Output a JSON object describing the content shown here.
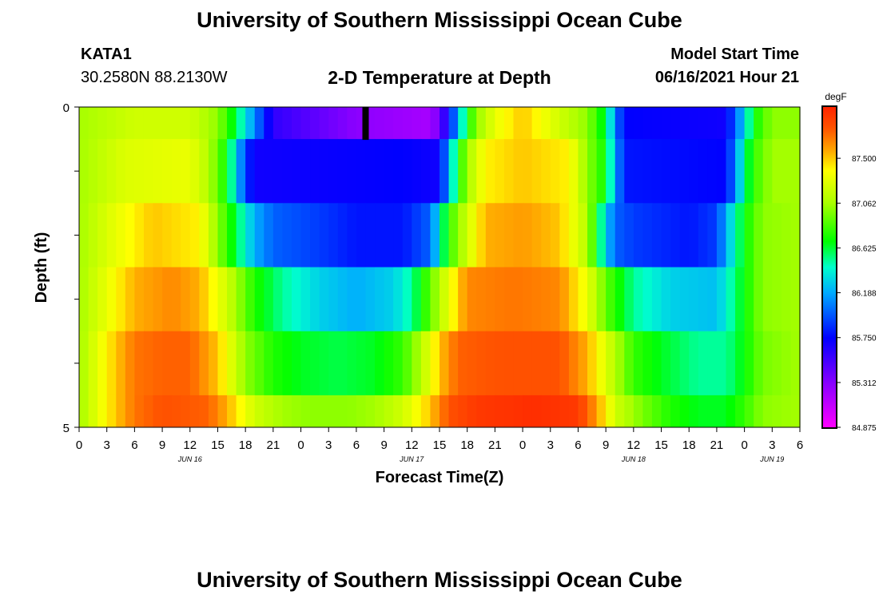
{
  "header": {
    "title": "University of Southern Mississippi Ocean Cube",
    "station": "KATA1",
    "coordinates": "30.2580N  88.2130W",
    "subtitle": "2-D Temperature at Depth",
    "model_start_label": "Model Start Time",
    "model_start_value": "06/16/2021 Hour 21"
  },
  "footer": {
    "title": "University of Southern Mississippi Ocean Cube"
  },
  "chart_data": {
    "type": "heatmap",
    "title": "2-D Temperature at Depth",
    "xlabel": "Forecast Time(Z)",
    "ylabel": "Depth (ft)",
    "ylim": [
      0,
      5
    ],
    "y_tick_labels": [
      "0",
      "5"
    ],
    "x_hours_range": [
      0,
      78
    ],
    "x_tick_labels": [
      "0",
      "3",
      "6",
      "9",
      "12",
      "15",
      "18",
      "21",
      "0",
      "3",
      "6",
      "9",
      "12",
      "15",
      "18",
      "21",
      "0",
      "3",
      "6",
      "9",
      "12",
      "15",
      "18",
      "21",
      "0",
      "3",
      "6"
    ],
    "date_labels": [
      {
        "label": "JUN 16",
        "hour": 12
      },
      {
        "label": "JUN 17",
        "hour": 36
      },
      {
        "label": "JUN 18",
        "hour": 60
      },
      {
        "label": "JUN 19",
        "hour": 75
      }
    ],
    "current_time_marker_hour": 31,
    "colorbar": {
      "unit": "degF",
      "min": 84.875,
      "max": 88.0,
      "tick_labels": [
        "87.500",
        "87.062",
        "86.625",
        "86.188",
        "85.750",
        "85.312",
        "84.875"
      ]
    },
    "depth_layers": [
      {
        "depth_range": [
          0,
          0.5
        ],
        "keyframes": [
          [
            0,
            87.05
          ],
          [
            6,
            87.2
          ],
          [
            12,
            87.2
          ],
          [
            15,
            87.0
          ],
          [
            17,
            86.6
          ],
          [
            19,
            86.1
          ],
          [
            21,
            85.6
          ],
          [
            30,
            85.3
          ],
          [
            38,
            85.2
          ],
          [
            39,
            85.4
          ],
          [
            40,
            85.75
          ],
          [
            41,
            86.2
          ],
          [
            42,
            86.7
          ],
          [
            43,
            87.0
          ],
          [
            45,
            87.3
          ],
          [
            48,
            87.5
          ],
          [
            52,
            87.2
          ],
          [
            55,
            87.0
          ],
          [
            57,
            86.6
          ],
          [
            58,
            86.1
          ],
          [
            59,
            85.75
          ],
          [
            70,
            85.7
          ],
          [
            71,
            86.0
          ],
          [
            72,
            86.3
          ],
          [
            73,
            86.7
          ],
          [
            75,
            87.0
          ],
          [
            78,
            87.0
          ]
        ]
      },
      {
        "depth_range": [
          0.5,
          1.5
        ],
        "keyframes": [
          [
            0,
            87.05
          ],
          [
            5,
            87.25
          ],
          [
            12,
            87.3
          ],
          [
            14,
            87.1
          ],
          [
            16,
            86.7
          ],
          [
            17,
            86.3
          ],
          [
            18,
            85.9
          ],
          [
            19,
            85.7
          ],
          [
            35,
            85.75
          ],
          [
            39,
            85.7
          ],
          [
            40,
            86.2
          ],
          [
            41,
            86.7
          ],
          [
            42,
            87.05
          ],
          [
            44,
            87.4
          ],
          [
            48,
            87.5
          ],
          [
            53,
            87.4
          ],
          [
            55,
            87.0
          ],
          [
            57,
            86.7
          ],
          [
            58,
            86.2
          ],
          [
            59,
            85.8
          ],
          [
            70,
            85.75
          ],
          [
            71,
            86.1
          ],
          [
            72,
            86.5
          ],
          [
            73,
            86.8
          ],
          [
            75,
            87.05
          ],
          [
            78,
            87.05
          ]
        ]
      },
      {
        "depth_range": [
          1.5,
          2.5
        ],
        "keyframes": [
          [
            0,
            87.05
          ],
          [
            4,
            87.3
          ],
          [
            8,
            87.5
          ],
          [
            13,
            87.4
          ],
          [
            15,
            87.0
          ],
          [
            17,
            86.6
          ],
          [
            19,
            86.2
          ],
          [
            21,
            86.0
          ],
          [
            26,
            85.9
          ],
          [
            30,
            85.8
          ],
          [
            35,
            85.8
          ],
          [
            38,
            86.0
          ],
          [
            39,
            86.4
          ],
          [
            40,
            86.8
          ],
          [
            42,
            87.2
          ],
          [
            44,
            87.55
          ],
          [
            48,
            87.6
          ],
          [
            52,
            87.5
          ],
          [
            55,
            87.1
          ],
          [
            56,
            86.7
          ],
          [
            57,
            86.3
          ],
          [
            58,
            86.0
          ],
          [
            60,
            85.9
          ],
          [
            66,
            85.8
          ],
          [
            69,
            85.9
          ],
          [
            70,
            86.2
          ],
          [
            72,
            86.7
          ],
          [
            74,
            87.0
          ],
          [
            78,
            87.05
          ]
        ]
      },
      {
        "depth_range": [
          2.5,
          3.5
        ],
        "keyframes": [
          [
            0,
            87.05
          ],
          [
            3,
            87.3
          ],
          [
            6,
            87.55
          ],
          [
            10,
            87.65
          ],
          [
            13,
            87.55
          ],
          [
            16,
            87.2
          ],
          [
            19,
            86.75
          ],
          [
            22,
            86.5
          ],
          [
            26,
            86.3
          ],
          [
            30,
            86.2
          ],
          [
            34,
            86.3
          ],
          [
            36,
            86.5
          ],
          [
            38,
            86.9
          ],
          [
            40,
            87.3
          ],
          [
            42,
            87.65
          ],
          [
            47,
            87.7
          ],
          [
            52,
            87.65
          ],
          [
            55,
            87.3
          ],
          [
            57,
            86.9
          ],
          [
            60,
            86.5
          ],
          [
            64,
            86.3
          ],
          [
            69,
            86.25
          ],
          [
            70,
            86.4
          ],
          [
            72,
            86.7
          ],
          [
            74,
            87.0
          ],
          [
            78,
            87.05
          ]
        ]
      },
      {
        "depth_range": [
          3.5,
          4.5
        ],
        "keyframes": [
          [
            0,
            87.05
          ],
          [
            3,
            87.4
          ],
          [
            6,
            87.7
          ],
          [
            9,
            87.75
          ],
          [
            12,
            87.75
          ],
          [
            15,
            87.5
          ],
          [
            18,
            87.0
          ],
          [
            21,
            86.75
          ],
          [
            24,
            86.65
          ],
          [
            28,
            86.6
          ],
          [
            32,
            86.65
          ],
          [
            35,
            86.8
          ],
          [
            37,
            87.1
          ],
          [
            39,
            87.5
          ],
          [
            41,
            87.75
          ],
          [
            46,
            87.8
          ],
          [
            52,
            87.8
          ],
          [
            55,
            87.55
          ],
          [
            58,
            87.1
          ],
          [
            60,
            86.8
          ],
          [
            63,
            86.65
          ],
          [
            67,
            86.5
          ],
          [
            70,
            86.5
          ],
          [
            72,
            86.7
          ],
          [
            74,
            86.95
          ],
          [
            78,
            87.05
          ]
        ]
      },
      {
        "depth_range": [
          4.5,
          5.0
        ],
        "keyframes": [
          [
            0,
            87.05
          ],
          [
            3,
            87.4
          ],
          [
            6,
            87.7
          ],
          [
            9,
            87.8
          ],
          [
            14,
            87.75
          ],
          [
            16,
            87.55
          ],
          [
            19,
            87.2
          ],
          [
            22,
            87.05
          ],
          [
            25,
            87.0
          ],
          [
            29,
            87.0
          ],
          [
            32,
            87.05
          ],
          [
            35,
            87.2
          ],
          [
            38,
            87.5
          ],
          [
            40,
            87.8
          ],
          [
            43,
            87.9
          ],
          [
            49,
            87.95
          ],
          [
            54,
            87.9
          ],
          [
            56,
            87.6
          ],
          [
            58,
            87.2
          ],
          [
            61,
            86.95
          ],
          [
            64,
            86.75
          ],
          [
            67,
            86.65
          ],
          [
            70,
            86.65
          ],
          [
            72,
            86.8
          ],
          [
            74,
            87.0
          ],
          [
            78,
            87.05
          ]
        ]
      }
    ]
  }
}
